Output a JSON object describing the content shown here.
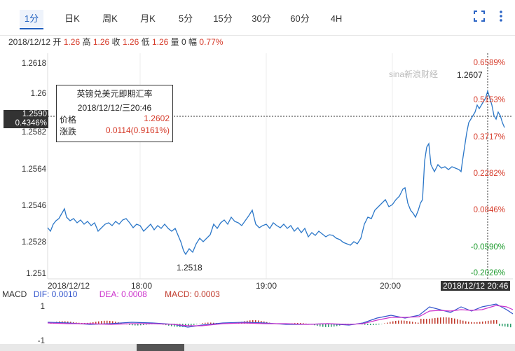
{
  "tabs": [
    "1分",
    "日K",
    "周K",
    "月K",
    "5分",
    "15分",
    "30分",
    "60分",
    "4H"
  ],
  "active_tab": "1分",
  "icons": {
    "fullscreen": "fullscreen-icon",
    "menu": "more-vertical-icon"
  },
  "info": {
    "date": "2018/12/12",
    "open_label": "开",
    "open": "1.26",
    "high_label": "高",
    "high": "1.26",
    "close_label": "收",
    "close": "1.26",
    "low_label": "低",
    "low": "1.26",
    "vol_label": "量",
    "vol": "0",
    "amp_label": "幅",
    "amp": "0.77%"
  },
  "watermark": "sina新浪财经",
  "price_axis": [
    "1.2618",
    "1.26",
    "1.2582",
    "1.2564",
    "1.2546",
    "1.2528",
    "1.251"
  ],
  "pct_axis": [
    "0.6589%",
    "0.5153%",
    "0.3717%",
    "0.2282%",
    "0.0846%",
    "-0.0590%",
    "-0.2026%"
  ],
  "crosshair": {
    "price": "1.2590",
    "pct": "0.4346%"
  },
  "high_mark": "1.2607",
  "low_mark": "1.2518",
  "tooltip": {
    "title": "英镑兑美元即期汇率",
    "time": "2018/12/12/三20:46",
    "price_label": "价格",
    "price": "1.2602",
    "change_label": "涨跌",
    "change": "0.0114(0.9161%)"
  },
  "x_axis": [
    "2018/12/12",
    "18:00",
    "19:00",
    "20:00"
  ],
  "time_box": "2018/12/12 20:46",
  "macd": {
    "name": "MACD",
    "dif_label": "DIF: 0.0010",
    "dea_label": "DEA: 0.0008",
    "macd_label": "MACD: 0.0003",
    "axis": [
      "1",
      "-1"
    ]
  },
  "colors": {
    "price_line": "#2b77c8",
    "dif": "#3355cc",
    "dea": "#cc33cc",
    "up": "#c0392b",
    "down": "#2a9d6a"
  }
}
